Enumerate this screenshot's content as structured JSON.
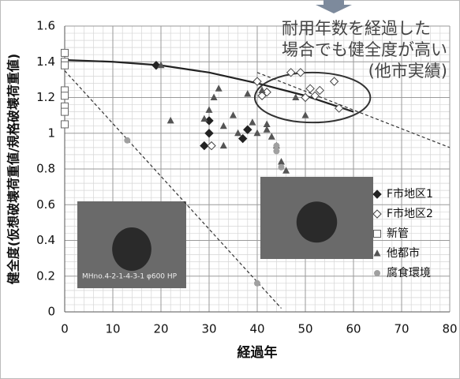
{
  "chart_data": {
    "type": "scatter",
    "xlabel": "経過年",
    "ylabel": "健全度(仮想破壊荷重値/規格破壊荷重値)",
    "xlim": [
      0,
      80
    ],
    "ylim": [
      0,
      1.6
    ],
    "xticks": [
      0,
      10,
      20,
      30,
      40,
      50,
      60,
      70,
      80
    ],
    "yticks": [
      0,
      0.2,
      0.4,
      0.6,
      0.8,
      1,
      1.2,
      1.4,
      1.6
    ],
    "grid": true,
    "minor_grid": true,
    "legend": "right",
    "series": [
      {
        "name": "F市地区1",
        "color": "#222222",
        "marker": "diamond-filled",
        "x": [
          19,
          29,
          30,
          30,
          37,
          38
        ],
        "values": [
          1.38,
          0.93,
          1.0,
          1.07,
          0.97,
          1.02
        ]
      },
      {
        "name": "F市地区2",
        "color": "#444444",
        "marker": "diamond-open",
        "x": [
          30.5,
          40,
          41,
          42,
          47,
          49,
          50,
          51,
          52,
          53,
          56,
          57
        ],
        "values": [
          0.93,
          1.29,
          1.21,
          1.23,
          1.34,
          1.34,
          1.2,
          1.25,
          1.21,
          1.24,
          1.29,
          1.14
        ]
      },
      {
        "name": "新管",
        "color": "#666666",
        "marker": "square-open",
        "x": [
          0,
          0,
          0,
          0,
          0,
          0,
          0,
          0
        ],
        "values": [
          1.45,
          1.4,
          1.38,
          1.24,
          1.21,
          1.15,
          1.12,
          1.05
        ]
      },
      {
        "name": "他都市",
        "color": "#555555",
        "marker": "triangle",
        "x": [
          20,
          22,
          29,
          30,
          31,
          32,
          33,
          33,
          35,
          36,
          38,
          39,
          40,
          41,
          42,
          42,
          43,
          44,
          45,
          46,
          48,
          50
        ],
        "values": [
          1.38,
          1.07,
          1.08,
          1.13,
          1.2,
          1.25,
          0.93,
          1.04,
          1.1,
          1.0,
          1.22,
          1.06,
          1.0,
          1.24,
          1.02,
          1.05,
          0.98,
          0.93,
          0.84,
          0.79,
          1.2,
          1.1
        ]
      },
      {
        "name": "腐食環境",
        "color": "#a0a0a0",
        "marker": "circle",
        "x": [
          13,
          40,
          44,
          44,
          45
        ],
        "values": [
          0.96,
          0.16,
          0.93,
          0.9,
          0.81
        ]
      }
    ],
    "lines": [
      {
        "color": "#222222",
        "dashed": false,
        "x": [
          0,
          10,
          20,
          30,
          40,
          50,
          60
        ],
        "values": [
          1.41,
          1.4,
          1.38,
          1.34,
          1.28,
          1.21,
          1.12
        ]
      },
      {
        "color": "#333333",
        "dashed": true,
        "x": [
          0,
          45
        ],
        "values": [
          1.35,
          0.02
        ]
      },
      {
        "color": "#333333",
        "dashed": true,
        "x": [
          40,
          80
        ],
        "values": [
          1.34,
          0.92
        ]
      }
    ],
    "annotation": [
      "耐用年数を経過した",
      "場合でも健全度が高い",
      "(他市実績)"
    ],
    "photo_caption": "MHno.4-2-1-4-3-1 φ600 HP"
  }
}
